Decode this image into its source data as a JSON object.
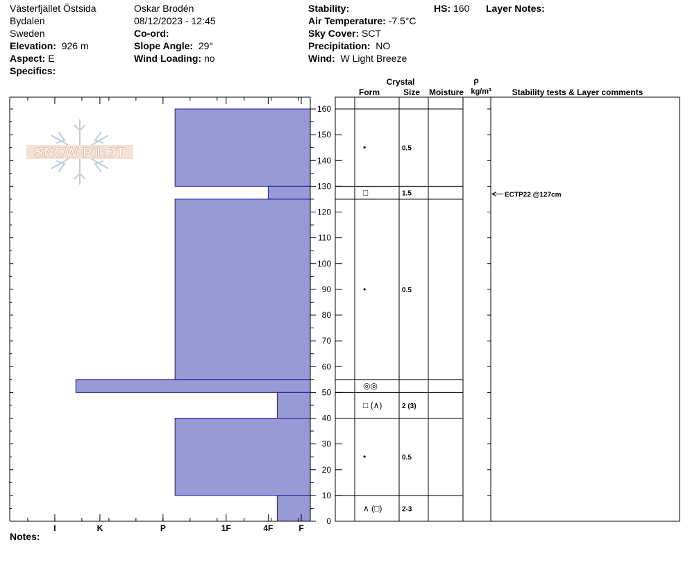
{
  "header": {
    "col1": {
      "location": "Västerfjället Östsida",
      "region": "Bydalen",
      "country": "Sweden",
      "elevation_label": "Elevation:",
      "elevation_value": "926 m",
      "aspect_label": "Aspect:",
      "aspect_value": "E",
      "specifics_label": "Specifics:"
    },
    "col2": {
      "observer": "Oskar Brodén",
      "datetime": "08/12/2023 - 12:45",
      "coord_label": "Co-ord:",
      "slope_label": "Slope Angle:",
      "slope_value": "29°",
      "wind_loading_label": "Wind Loading:",
      "wind_loading_value": "no"
    },
    "col3": {
      "stability_label": "Stability:",
      "air_temp_label": "Air Temperature:",
      "air_temp_value": "-7.5°C",
      "sky_label": "Sky Cover:",
      "sky_value": "SCT",
      "precip_label": "Precipitation:",
      "precip_value": "NO",
      "wind_label": "Wind:",
      "wind_value": "W Light Breeze"
    },
    "hs_label": "HS:",
    "hs_value": "160",
    "layer_notes_label": "Layer Notes:"
  },
  "columns": {
    "crystal": "Crystal",
    "form": "Form",
    "size": "Size",
    "moisture": "Moisture",
    "rho": "ρ",
    "density_unit": "kg/m³",
    "stability": "Stability tests & Layer comments"
  },
  "logo_text": "SNOW PILOT",
  "notes_label": "Notes:",
  "colors": {
    "layer_fill": "#9999d6",
    "layer_stroke": "#1a1a99",
    "frame": "#000000"
  },
  "chart_data": {
    "type": "snow-profile",
    "height_axis": {
      "min": 0,
      "max": 160,
      "unit": "cm",
      "ticks": [
        0,
        10,
        20,
        30,
        40,
        50,
        60,
        70,
        80,
        90,
        100,
        110,
        120,
        130,
        140,
        150,
        160
      ]
    },
    "hardness_axis": {
      "ticks": [
        "I",
        "K",
        "P",
        "1F",
        "4F",
        "F"
      ],
      "tick_positions": [
        0.15,
        0.3,
        0.51,
        0.72,
        0.86,
        0.97
      ]
    },
    "layers": [
      {
        "top": 160,
        "bottom": 130,
        "hardness_fraction": 0.45,
        "form": "•",
        "size": "0.5"
      },
      {
        "top": 130,
        "bottom": 125,
        "hardness_fraction": 0.14,
        "form": "□",
        "size": "1.5"
      },
      {
        "top": 125,
        "bottom": 55,
        "hardness_fraction": 0.45,
        "form": "•",
        "size": "0.5"
      },
      {
        "top": 55,
        "bottom": 50,
        "hardness_fraction": 0.78,
        "form": "◎◎",
        "size": ""
      },
      {
        "top": 50,
        "bottom": 40,
        "hardness_fraction": 0.11,
        "form": "□ (∧)",
        "size": "2 (3)"
      },
      {
        "top": 40,
        "bottom": 10,
        "hardness_fraction": 0.45,
        "form": "•",
        "size": "0.5"
      },
      {
        "top": 10,
        "bottom": 0,
        "hardness_fraction": 0.11,
        "form": "∧ (□)",
        "size": "2-3"
      }
    ],
    "stability_tests": [
      {
        "height": 127,
        "label": "ECTP22 @127cm"
      }
    ]
  }
}
